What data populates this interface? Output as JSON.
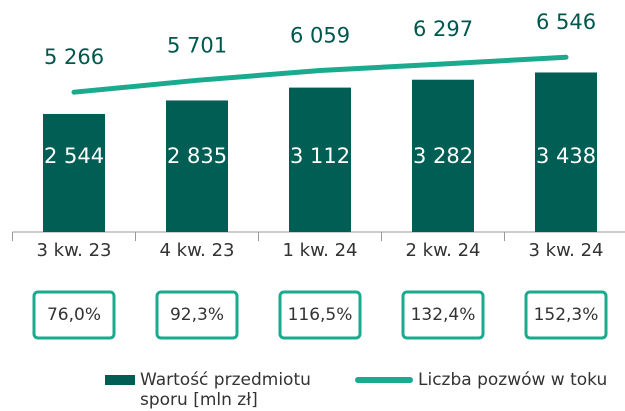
{
  "chart_data": {
    "type": "bar",
    "categories": [
      "3 kw. 23",
      "4 kw. 23",
      "1 kw. 24",
      "2 kw. 24",
      "3 kw. 24"
    ],
    "ylim": [
      0,
      5000
    ],
    "y2lim": [
      150,
      8640
    ],
    "series": [
      {
        "name": "Wartość przedmiotu sporu [mln zł]",
        "type": "bar",
        "color": "#005e54",
        "values": [
          2544,
          2835,
          3112,
          3282,
          3438
        ],
        "value_labels": [
          "2 544",
          "2 835",
          "3 112",
          "3 282",
          "3 438"
        ]
      },
      {
        "name": "Liczba pozwów w toku",
        "type": "line",
        "axis": "y2",
        "color": "#1aaa8e",
        "values": [
          5266,
          5701,
          6059,
          6297,
          6546
        ],
        "value_labels": [
          "5 266",
          "5 701",
          "6 059",
          "6 297",
          "6 546"
        ]
      }
    ],
    "boxes": {
      "color": "#1aaa8e",
      "values": [
        76.0,
        92.3,
        116.5,
        132.4,
        152.3
      ],
      "value_labels": [
        "76,0%",
        "92,3%",
        "116,5%",
        "132,4%",
        "152,3%"
      ]
    }
  }
}
